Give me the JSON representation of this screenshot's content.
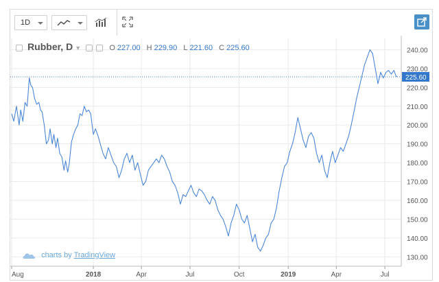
{
  "toolbar": {
    "interval_label": "1D",
    "chart_style_icon": "line-chart-icon",
    "indicators_icon": "indicators-icon",
    "fullscreen_icon": "fullscreen-icon",
    "share_icon": "share-icon"
  },
  "legend": {
    "symbol": "Rubber, D",
    "open_label": "O",
    "open_value": "227.00",
    "high_label": "H",
    "high_value": "229.90",
    "low_label": "L",
    "low_value": "221.60",
    "close_label": "C",
    "close_value": "225.60"
  },
  "attribution": {
    "prefix": "charts by",
    "brand": "TradingView"
  },
  "colors": {
    "line": "#4a86d8",
    "last_price_bg": "#3377cc",
    "grid": "#eaeaea"
  },
  "chart_data": {
    "type": "line",
    "title": "Rubber, D",
    "xlabel": "",
    "ylabel": "",
    "ylim": [
      125,
      246
    ],
    "y_ticks": [
      130,
      140,
      150,
      160,
      170,
      180,
      190,
      200,
      210,
      220,
      230,
      240
    ],
    "y_tick_labels": [
      "130.00",
      "140.00",
      "150.00",
      "160.00",
      "170.00",
      "180.00",
      "190.00",
      "200.00",
      "210.00",
      "220.00",
      "230.00",
      "240.00"
    ],
    "x_tick_labels": [
      "Aug",
      "2018",
      "Apr",
      "Jul",
      "Oct",
      "2019",
      "Apr",
      "Jul"
    ],
    "x_tick_dates": [
      "2017-08-01",
      "2018-01-01",
      "2018-04-01",
      "2018-07-01",
      "2018-10-01",
      "2019-01-01",
      "2019-04-01",
      "2019-07-01"
    ],
    "xlim": [
      "2017-08-01",
      "2019-07-24"
    ],
    "last_price": 225.6,
    "last_price_label": "225.60",
    "grid": true,
    "series": [
      {
        "x": [
          "2017-08-01",
          "2017-08-05",
          "2017-08-10",
          "2017-08-15",
          "2017-08-18",
          "2017-08-22",
          "2017-08-26",
          "2017-08-30",
          "2017-09-03",
          "2017-09-06",
          "2017-09-09",
          "2017-09-13",
          "2017-09-17",
          "2017-09-21",
          "2017-09-24",
          "2017-09-27",
          "2017-10-01",
          "2017-10-05",
          "2017-10-09",
          "2017-10-12",
          "2017-10-16",
          "2017-10-19",
          "2017-10-23",
          "2017-10-26",
          "2017-10-30",
          "2017-11-03",
          "2017-11-07",
          "2017-11-10",
          "2017-11-14",
          "2017-11-17",
          "2017-11-21",
          "2017-11-25",
          "2017-11-29",
          "2017-12-03",
          "2017-12-07",
          "2017-12-11",
          "2017-12-15",
          "2017-12-19",
          "2017-12-23",
          "2017-12-27",
          "2018-01-01",
          "2018-01-05",
          "2018-01-10",
          "2018-01-14",
          "2018-01-19",
          "2018-01-24",
          "2018-01-29",
          "2018-02-03",
          "2018-02-08",
          "2018-02-13",
          "2018-02-18",
          "2018-02-23",
          "2018-02-28",
          "2018-03-05",
          "2018-03-10",
          "2018-03-15",
          "2018-03-20",
          "2018-03-25",
          "2018-03-30",
          "2018-04-04",
          "2018-04-09",
          "2018-04-14",
          "2018-04-19",
          "2018-04-24",
          "2018-04-29",
          "2018-05-04",
          "2018-05-09",
          "2018-05-14",
          "2018-05-19",
          "2018-05-24",
          "2018-05-29",
          "2018-06-03",
          "2018-06-08",
          "2018-06-13",
          "2018-06-18",
          "2018-06-23",
          "2018-06-28",
          "2018-07-03",
          "2018-07-08",
          "2018-07-13",
          "2018-07-18",
          "2018-07-23",
          "2018-07-28",
          "2018-08-02",
          "2018-08-07",
          "2018-08-12",
          "2018-08-17",
          "2018-08-22",
          "2018-08-27",
          "2018-09-01",
          "2018-09-06",
          "2018-09-11",
          "2018-09-16",
          "2018-09-21",
          "2018-09-26",
          "2018-10-01",
          "2018-10-06",
          "2018-10-11",
          "2018-10-16",
          "2018-10-21",
          "2018-10-26",
          "2018-10-31",
          "2018-11-05",
          "2018-11-10",
          "2018-11-15",
          "2018-11-20",
          "2018-11-25",
          "2018-11-30",
          "2018-12-05",
          "2018-12-10",
          "2018-12-15",
          "2018-12-20",
          "2018-12-25",
          "2018-12-30",
          "2019-01-04",
          "2019-01-09",
          "2019-01-14",
          "2019-01-19",
          "2019-01-24",
          "2019-01-29",
          "2019-02-03",
          "2019-02-08",
          "2019-02-13",
          "2019-02-18",
          "2019-02-23",
          "2019-02-28",
          "2019-03-05",
          "2019-03-10",
          "2019-03-15",
          "2019-03-20",
          "2019-03-25",
          "2019-03-30",
          "2019-04-04",
          "2019-04-09",
          "2019-04-14",
          "2019-04-19",
          "2019-04-24",
          "2019-04-29",
          "2019-05-04",
          "2019-05-09",
          "2019-05-14",
          "2019-05-19",
          "2019-05-24",
          "2019-05-29",
          "2019-06-03",
          "2019-06-08",
          "2019-06-13",
          "2019-06-18",
          "2019-06-23",
          "2019-06-28",
          "2019-07-03",
          "2019-07-08",
          "2019-07-13",
          "2019-07-18",
          "2019-07-22",
          "2019-07-24"
        ],
        "y": [
          206,
          202,
          210,
          200,
          208,
          202,
          212,
          210,
          225,
          221,
          220,
          214,
          211,
          212,
          208,
          207,
          200,
          190,
          192,
          198,
          190,
          195,
          188,
          193,
          185,
          183,
          176,
          181,
          175,
          180,
          191,
          195,
          198,
          200,
          206,
          205,
          210,
          207,
          208,
          206,
          195,
          198,
          194,
          190,
          185,
          182,
          188,
          184,
          180,
          178,
          172,
          176,
          182,
          185,
          180,
          184,
          176,
          180,
          174,
          168,
          170,
          176,
          178,
          180,
          182,
          180,
          184,
          182,
          178,
          175,
          170,
          168,
          164,
          158,
          163,
          162,
          165,
          168,
          164,
          162,
          166,
          165,
          163,
          160,
          158,
          162,
          160,
          155,
          152,
          150,
          146,
          141,
          148,
          152,
          158,
          155,
          150,
          148,
          152,
          145,
          138,
          142,
          135,
          133,
          136,
          140,
          142,
          148,
          150,
          156,
          165,
          172,
          178,
          180,
          186,
          190,
          196,
          204,
          198,
          192,
          188,
          194,
          196,
          193,
          185,
          180,
          184,
          176,
          172,
          180,
          186,
          180,
          184,
          188,
          186,
          190,
          194,
          200,
          207,
          214,
          220,
          226,
          232,
          236,
          240,
          238,
          230,
          222,
          228,
          225,
          228,
          229,
          227,
          229,
          226,
          225.6
        ]
      }
    ]
  }
}
